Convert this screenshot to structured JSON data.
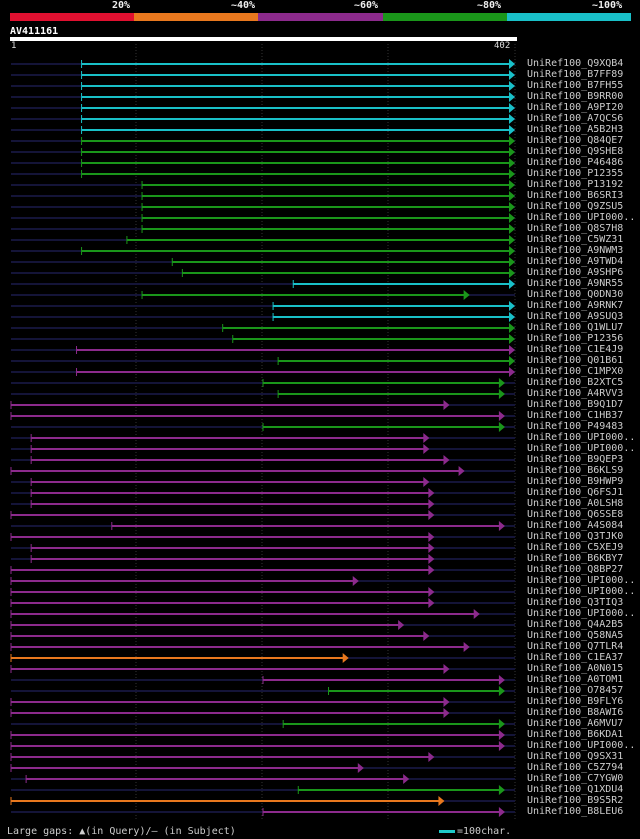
{
  "legend": {
    "labels": [
      "20%",
      "~40%",
      "~60%",
      "~80%",
      "~100%"
    ],
    "colors": [
      "#e01030",
      "#e8781e",
      "#8c2a8c",
      "#1a961a",
      "#19c0c8"
    ]
  },
  "query": {
    "name": "AV411161",
    "start": "1",
    "end": "402"
  },
  "hits": [
    {
      "label": "UniRef100_Q9XQB4",
      "color": "cyan",
      "start": 0.14,
      "end": 1.0
    },
    {
      "label": "UniRef100_B7FF89",
      "color": "cyan",
      "start": 0.14,
      "end": 1.0
    },
    {
      "label": "UniRef100_B7FH55",
      "color": "cyan",
      "start": 0.14,
      "end": 1.0
    },
    {
      "label": "UniRef100_B9RR00",
      "color": "cyan",
      "start": 0.14,
      "end": 1.0
    },
    {
      "label": "UniRef100_A9PI20",
      "color": "cyan",
      "start": 0.14,
      "end": 1.0
    },
    {
      "label": "UniRef100_A7QCS6",
      "color": "cyan",
      "start": 0.14,
      "end": 1.0
    },
    {
      "label": "UniRef100_A5B2H3",
      "color": "cyan",
      "start": 0.14,
      "end": 1.0
    },
    {
      "label": "UniRef100_Q84QE7",
      "color": "green",
      "start": 0.14,
      "end": 1.0
    },
    {
      "label": "UniRef100_Q9SHE8",
      "color": "green",
      "start": 0.14,
      "end": 1.0
    },
    {
      "label": "UniRef100_P46486",
      "color": "green",
      "start": 0.14,
      "end": 1.0
    },
    {
      "label": "UniRef100_P12355",
      "color": "green",
      "start": 0.14,
      "end": 1.0
    },
    {
      "label": "UniRef100_P13192",
      "color": "green",
      "start": 0.26,
      "end": 1.0
    },
    {
      "label": "UniRef100_B6SRI3",
      "color": "green",
      "start": 0.26,
      "end": 1.0
    },
    {
      "label": "UniRef100_Q9ZSU5",
      "color": "green",
      "start": 0.26,
      "end": 1.0
    },
    {
      "label": "UniRef100_UPI000..",
      "color": "green",
      "start": 0.26,
      "end": 1.0
    },
    {
      "label": "UniRef100_Q8S7H8",
      "color": "green",
      "start": 0.26,
      "end": 1.0
    },
    {
      "label": "UniRef100_C5WZ31",
      "color": "green",
      "start": 0.23,
      "end": 1.0
    },
    {
      "label": "UniRef100_A9NWM3",
      "color": "green",
      "start": 0.14,
      "end": 1.0
    },
    {
      "label": "UniRef100_A9TWD4",
      "color": "green",
      "start": 0.32,
      "end": 1.0
    },
    {
      "label": "UniRef100_A9SHP6",
      "color": "green",
      "start": 0.34,
      "end": 1.0
    },
    {
      "label": "UniRef100_A9NR55",
      "color": "cyan",
      "start": 0.56,
      "end": 1.0
    },
    {
      "label": "UniRef100_Q0DN30",
      "color": "green",
      "start": 0.26,
      "end": 0.91
    },
    {
      "label": "UniRef100_A9RNK7",
      "color": "cyan",
      "start": 0.52,
      "end": 1.0
    },
    {
      "label": "UniRef100_A9SUQ3",
      "color": "cyan",
      "start": 0.52,
      "end": 1.0
    },
    {
      "label": "UniRef100_Q1WLU7",
      "color": "green",
      "start": 0.42,
      "end": 1.0
    },
    {
      "label": "UniRef100_P12356",
      "color": "green",
      "start": 0.44,
      "end": 1.0
    },
    {
      "label": "UniRef100_C1E4J9",
      "color": "purple",
      "start": 0.13,
      "end": 1.0
    },
    {
      "label": "UniRef100_Q01B61",
      "color": "green",
      "start": 0.53,
      "end": 1.0
    },
    {
      "label": "UniRef100_C1MPX0",
      "color": "purple",
      "start": 0.13,
      "end": 1.0
    },
    {
      "label": "UniRef100_B2XTC5",
      "color": "green",
      "start": 0.5,
      "end": 0.98
    },
    {
      "label": "UniRef100_A4RVV3",
      "color": "green",
      "start": 0.53,
      "end": 0.98
    },
    {
      "label": "UniRef100_B9Q1D7",
      "color": "purple",
      "start": 0.0,
      "end": 0.87
    },
    {
      "label": "UniRef100_C1HB37",
      "color": "purple",
      "start": 0.0,
      "end": 0.98
    },
    {
      "label": "UniRef100_P49483",
      "color": "green",
      "start": 0.5,
      "end": 0.98
    },
    {
      "label": "UniRef100_UPI000..",
      "color": "purple",
      "start": 0.04,
      "end": 0.83
    },
    {
      "label": "UniRef100_UPI000..",
      "color": "purple",
      "start": 0.04,
      "end": 0.83
    },
    {
      "label": "UniRef100_B9QEP3",
      "color": "purple",
      "start": 0.04,
      "end": 0.87
    },
    {
      "label": "UniRef100_B6KLS9",
      "color": "purple",
      "start": 0.0,
      "end": 0.9
    },
    {
      "label": "UniRef100_B9HWP9",
      "color": "purple",
      "start": 0.04,
      "end": 0.83
    },
    {
      "label": "UniRef100_Q6FSJ1",
      "color": "purple",
      "start": 0.04,
      "end": 0.84
    },
    {
      "label": "UniRef100_A0LSH8",
      "color": "purple",
      "start": 0.04,
      "end": 0.84
    },
    {
      "label": "UniRef100_Q6SSE8",
      "color": "purple",
      "start": 0.0,
      "end": 0.84
    },
    {
      "label": "UniRef100_A4S084",
      "color": "purple",
      "start": 0.2,
      "end": 0.98
    },
    {
      "label": "UniRef100_Q3TJK0",
      "color": "purple",
      "start": 0.0,
      "end": 0.84
    },
    {
      "label": "UniRef100_C5XEJ9",
      "color": "purple",
      "start": 0.04,
      "end": 0.84
    },
    {
      "label": "UniRef100_B6KBY7",
      "color": "purple",
      "start": 0.04,
      "end": 0.84
    },
    {
      "label": "UniRef100_Q8BP27",
      "color": "purple",
      "start": 0.0,
      "end": 0.84
    },
    {
      "label": "UniRef100_UPI000..",
      "color": "purple",
      "start": 0.0,
      "end": 0.69
    },
    {
      "label": "UniRef100_UPI000..",
      "color": "purple",
      "start": 0.0,
      "end": 0.84
    },
    {
      "label": "UniRef100_Q3TIQ3",
      "color": "purple",
      "start": 0.0,
      "end": 0.84
    },
    {
      "label": "UniRef100_UPI000..",
      "color": "purple",
      "start": 0.0,
      "end": 0.93
    },
    {
      "label": "UniRef100_Q4A2B5",
      "color": "purple",
      "start": 0.0,
      "end": 0.78
    },
    {
      "label": "UniRef100_Q58NA5",
      "color": "purple",
      "start": 0.0,
      "end": 0.83
    },
    {
      "label": "UniRef100_Q7TLR4",
      "color": "purple",
      "start": 0.0,
      "end": 0.91
    },
    {
      "label": "UniRef100_C1EA37",
      "color": "orange",
      "start": 0.0,
      "end": 0.67
    },
    {
      "label": "UniRef100_A0N015",
      "color": "purple",
      "start": 0.0,
      "end": 0.87
    },
    {
      "label": "UniRef100_A0TOM1",
      "color": "purple",
      "start": 0.5,
      "end": 0.98
    },
    {
      "label": "UniRef100_O78457",
      "color": "green",
      "start": 0.63,
      "end": 0.98
    },
    {
      "label": "UniRef100_B9FLY6",
      "color": "purple",
      "start": 0.0,
      "end": 0.87
    },
    {
      "label": "UniRef100_B8AWI6",
      "color": "purple",
      "start": 0.0,
      "end": 0.87
    },
    {
      "label": "UniRef100_A6MVU7",
      "color": "green",
      "start": 0.54,
      "end": 0.98
    },
    {
      "label": "UniRef100_B6KDA1",
      "color": "purple",
      "start": 0.0,
      "end": 0.98
    },
    {
      "label": "UniRef100_UPI000..",
      "color": "purple",
      "start": 0.0,
      "end": 0.98
    },
    {
      "label": "UniRef100_Q9SX31",
      "color": "purple",
      "start": 0.0,
      "end": 0.84
    },
    {
      "label": "UniRef100_C5Z794",
      "color": "purple",
      "start": 0.0,
      "end": 0.7
    },
    {
      "label": "UniRef100_C7YGW0",
      "color": "purple",
      "start": 0.03,
      "end": 0.79
    },
    {
      "label": "UniRef100_Q1XDU4",
      "color": "green",
      "start": 0.57,
      "end": 0.98
    },
    {
      "label": "UniRef100_B9S5R2",
      "color": "orange",
      "start": 0.0,
      "end": 0.86
    },
    {
      "label": "UniRef100_B8LEU6",
      "color": "purple",
      "start": 0.5,
      "end": 0.98
    }
  ],
  "colors": {
    "cyan": "#19c0c8",
    "green": "#1a961a",
    "purple": "#8c2a8c",
    "orange": "#e8781e",
    "red": "#e01030"
  },
  "footer": {
    "gaps": "Large gaps: ▲(in Query)/— (in Subject)",
    "scale": "=100char."
  }
}
